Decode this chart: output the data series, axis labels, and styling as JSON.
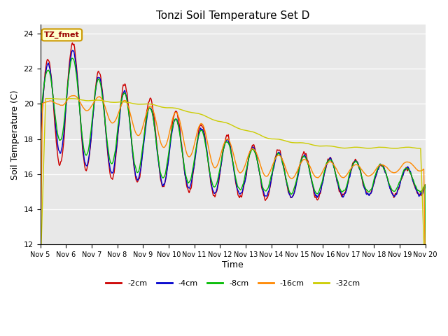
{
  "title": "Tonzi Soil Temperature Set D",
  "xlabel": "Time",
  "ylabel": "Soil Temperature (C)",
  "ylim": [
    12,
    24.5
  ],
  "annotation": "TZ_fmet",
  "annotation_color": "#990000",
  "annotation_bg": "#ffffcc",
  "annotation_border": "#cc9900",
  "plot_bg": "#e8e8e8",
  "fig_bg": "#ffffff",
  "series_colors": {
    "-2cm": "#cc0000",
    "-4cm": "#0000cc",
    "-8cm": "#00bb00",
    "-16cm": "#ff8800",
    "-32cm": "#cccc00"
  },
  "x_tick_labels": [
    "Nov 5",
    "Nov 6",
    "Nov 7",
    "Nov 8",
    "Nov 9",
    "Nov 10",
    "Nov 11",
    "Nov 12",
    "Nov 13",
    "Nov 14",
    "Nov 15",
    "Nov 16",
    "Nov 17",
    "Nov 18",
    "Nov 19",
    "Nov 20"
  ],
  "y_ticks": [
    12,
    14,
    16,
    18,
    20,
    22,
    24
  ],
  "line_width": 1.0,
  "n_days": 15,
  "samples_per_day": 48
}
